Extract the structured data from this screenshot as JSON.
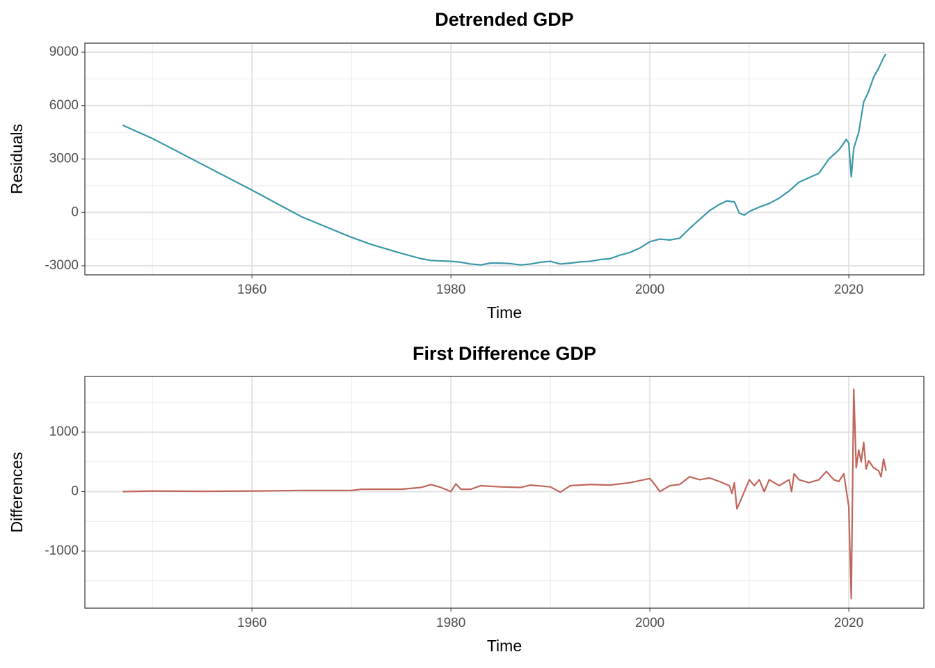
{
  "chart_data": [
    {
      "type": "line",
      "title": "Detrended GDP",
      "x_label": "Time",
      "y_label": "Residuals",
      "xlim": [
        1943.2,
        2027.55
      ],
      "xticks": [
        1960,
        1980,
        2000,
        2020
      ],
      "minor_xticks": [
        1950,
        1970,
        1990,
        2010
      ],
      "ylim": [
        -3509,
        9509
      ],
      "yticks": [
        -3000,
        0,
        3000,
        6000,
        9000
      ],
      "minor_yticks": [
        -1500,
        1500,
        4500,
        7500
      ],
      "grid": true,
      "x": [
        1947,
        1950,
        1955,
        1960,
        1965,
        1970,
        1972,
        1975,
        1977,
        1978,
        1980,
        1981,
        1982,
        1983,
        1984,
        1985,
        1986,
        1987,
        1988,
        1989,
        1990,
        1991,
        1992,
        1993,
        1994,
        1995,
        1996,
        1997,
        1998,
        1999,
        2000,
        2001,
        2002,
        2003,
        2004,
        2005,
        2006,
        2007,
        2007.75,
        2008.25,
        2008.5,
        2009,
        2009.5,
        2010,
        2011,
        2012,
        2013,
        2014,
        2015,
        2016,
        2017,
        2018,
        2019,
        2019.75,
        2020,
        2020.25,
        2020.5,
        2021,
        2021.5,
        2022,
        2022.5,
        2023,
        2023.5,
        2023.75
      ],
      "series": [
        {
          "name": "Residuals",
          "color": "#3a98a8",
          "values": [
            4900,
            4150,
            2700,
            1250,
            -250,
            -1400,
            -1800,
            -2300,
            -2600,
            -2700,
            -2750,
            -2800,
            -2900,
            -2950,
            -2850,
            -2850,
            -2880,
            -2950,
            -2900,
            -2800,
            -2750,
            -2900,
            -2850,
            -2780,
            -2750,
            -2650,
            -2600,
            -2400,
            -2250,
            -2000,
            -1650,
            -1500,
            -1550,
            -1450,
            -900,
            -400,
            100,
            450,
            650,
            600,
            600,
            -50,
            -150,
            50,
            300,
            500,
            800,
            1200,
            1700,
            1950,
            2200,
            3000,
            3500,
            4100,
            3900,
            2000,
            3600,
            4500,
            6200,
            6800,
            7600,
            8100,
            8700,
            8900
          ]
        }
      ]
    },
    {
      "type": "line",
      "title": "First Difference GDP",
      "x_label": "Time",
      "y_label": "Differences",
      "xlim": [
        1943.2,
        2027.55
      ],
      "xticks": [
        1960,
        1980,
        2000,
        2020
      ],
      "minor_xticks": [
        1950,
        1970,
        1990,
        2010
      ],
      "ylim": [
        -1959,
        1936
      ],
      "yticks": [
        -1000,
        0,
        1000
      ],
      "minor_yticks": [
        -1500,
        -500,
        500,
        1500
      ],
      "grid": true,
      "x": [
        1947,
        1950,
        1955,
        1960,
        1965,
        1970,
        1971,
        1973,
        1975,
        1977,
        1978,
        1979,
        1980,
        1980.5,
        1981,
        1982,
        1983,
        1985,
        1987,
        1988,
        1990,
        1991,
        1992,
        1994,
        1996,
        1998,
        2000,
        2000.5,
        2001,
        2002,
        2003,
        2004,
        2005,
        2006,
        2007,
        2008,
        2008.25,
        2008.5,
        2008.75,
        2009.25,
        2010,
        2010.5,
        2011,
        2011.5,
        2012,
        2013,
        2014,
        2014.25,
        2014.5,
        2015,
        2016,
        2017,
        2017.75,
        2018.5,
        2019,
        2019.5,
        2020,
        2020.25,
        2020.5,
        2020.75,
        2021,
        2021.25,
        2021.5,
        2021.75,
        2022,
        2022.5,
        2023,
        2023.25,
        2023.5,
        2023.75
      ],
      "series": [
        {
          "name": "Differences",
          "color": "#c0665a",
          "values": [
            0,
            10,
            5,
            10,
            20,
            20,
            40,
            40,
            40,
            70,
            120,
            70,
            0,
            130,
            40,
            40,
            100,
            80,
            70,
            110,
            80,
            -10,
            100,
            120,
            110,
            150,
            220,
            120,
            0,
            100,
            120,
            250,
            200,
            230,
            170,
            100,
            -30,
            150,
            -290,
            -100,
            200,
            100,
            200,
            0,
            200,
            100,
            200,
            0,
            300,
            200,
            150,
            200,
            340,
            200,
            170,
            300,
            -250,
            -1800,
            1720,
            400,
            700,
            500,
            830,
            380,
            520,
            400,
            350,
            250,
            550,
            350
          ]
        }
      ]
    }
  ]
}
